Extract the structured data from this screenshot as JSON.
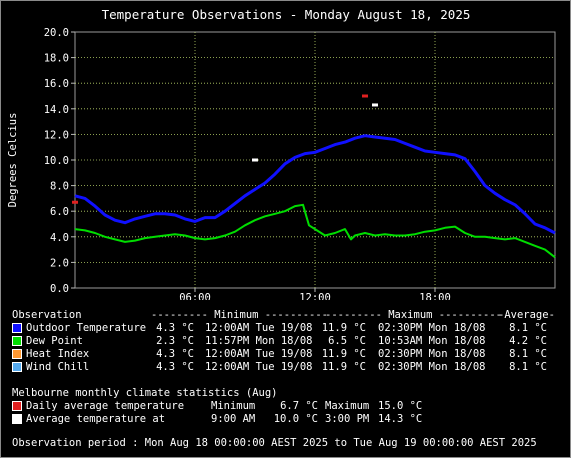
{
  "chart_data": {
    "type": "line",
    "title": "Temperature Observations - Monday August 18, 2025",
    "ylabel": "Degrees Celcius",
    "xlabel": "",
    "ylim": [
      0,
      20
    ],
    "yticks": [
      "0.0",
      "2.0",
      "4.0",
      "6.0",
      "8.0",
      "10.0",
      "12.0",
      "14.0",
      "16.0",
      "18.0",
      "20.0"
    ],
    "xlim": [
      0,
      24
    ],
    "xticks": [
      {
        "hour": 6,
        "label": "06:00"
      },
      {
        "hour": 12,
        "label": "12:00"
      },
      {
        "hour": 18,
        "label": "18:00"
      }
    ],
    "grid": true,
    "series": [
      {
        "name": "Outdoor Temperature",
        "color": "#1010ff",
        "points": [
          [
            0,
            7.2
          ],
          [
            0.5,
            7.0
          ],
          [
            1,
            6.4
          ],
          [
            1.5,
            5.7
          ],
          [
            2,
            5.3
          ],
          [
            2.5,
            5.1
          ],
          [
            3,
            5.4
          ],
          [
            3.5,
            5.6
          ],
          [
            4,
            5.8
          ],
          [
            4.5,
            5.8
          ],
          [
            5,
            5.7
          ],
          [
            5.5,
            5.4
          ],
          [
            6,
            5.2
          ],
          [
            6.5,
            5.5
          ],
          [
            7,
            5.5
          ],
          [
            7.5,
            6.0
          ],
          [
            8,
            6.6
          ],
          [
            8.5,
            7.2
          ],
          [
            9,
            7.7
          ],
          [
            9.5,
            8.2
          ],
          [
            10,
            8.9
          ],
          [
            10.5,
            9.7
          ],
          [
            11,
            10.2
          ],
          [
            11.5,
            10.5
          ],
          [
            12,
            10.6
          ],
          [
            12.5,
            10.9
          ],
          [
            13,
            11.2
          ],
          [
            13.5,
            11.4
          ],
          [
            14,
            11.7
          ],
          [
            14.5,
            11.9
          ],
          [
            15,
            11.8
          ],
          [
            15.5,
            11.7
          ],
          [
            16,
            11.6
          ],
          [
            16.5,
            11.3
          ],
          [
            17,
            11.0
          ],
          [
            17.5,
            10.7
          ],
          [
            18,
            10.6
          ],
          [
            18.5,
            10.5
          ],
          [
            19,
            10.4
          ],
          [
            19.5,
            10.1
          ],
          [
            20,
            9.1
          ],
          [
            20.5,
            8.0
          ],
          [
            21,
            7.4
          ],
          [
            21.5,
            6.9
          ],
          [
            22,
            6.5
          ],
          [
            22.5,
            5.8
          ],
          [
            23,
            5.0
          ],
          [
            23.5,
            4.7
          ],
          [
            24,
            4.3
          ]
        ]
      },
      {
        "name": "Dew Point",
        "color": "#00dd00",
        "points": [
          [
            0,
            4.6
          ],
          [
            0.5,
            4.5
          ],
          [
            1,
            4.3
          ],
          [
            1.5,
            4.0
          ],
          [
            2,
            3.8
          ],
          [
            2.5,
            3.6
          ],
          [
            3,
            3.7
          ],
          [
            3.5,
            3.9
          ],
          [
            4,
            4.0
          ],
          [
            4.5,
            4.1
          ],
          [
            5,
            4.2
          ],
          [
            5.5,
            4.1
          ],
          [
            6,
            3.9
          ],
          [
            6.5,
            3.8
          ],
          [
            7,
            3.9
          ],
          [
            7.5,
            4.1
          ],
          [
            8,
            4.4
          ],
          [
            8.5,
            4.9
          ],
          [
            9,
            5.3
          ],
          [
            9.5,
            5.6
          ],
          [
            10,
            5.8
          ],
          [
            10.5,
            6.0
          ],
          [
            11,
            6.4
          ],
          [
            11.4,
            6.5
          ],
          [
            11.7,
            4.9
          ],
          [
            12,
            4.6
          ],
          [
            12.5,
            4.1
          ],
          [
            13,
            4.3
          ],
          [
            13.5,
            4.6
          ],
          [
            13.8,
            3.8
          ],
          [
            14,
            4.1
          ],
          [
            14.5,
            4.3
          ],
          [
            15,
            4.1
          ],
          [
            15.5,
            4.2
          ],
          [
            16,
            4.1
          ],
          [
            16.5,
            4.1
          ],
          [
            17,
            4.2
          ],
          [
            17.5,
            4.4
          ],
          [
            18,
            4.5
          ],
          [
            18.5,
            4.7
          ],
          [
            19,
            4.8
          ],
          [
            19.5,
            4.3
          ],
          [
            20,
            4.0
          ],
          [
            20.5,
            4.0
          ],
          [
            21,
            3.9
          ],
          [
            21.5,
            3.8
          ],
          [
            22,
            3.9
          ],
          [
            22.5,
            3.6
          ],
          [
            23,
            3.3
          ],
          [
            23.5,
            3.0
          ],
          [
            24,
            2.4
          ]
        ]
      }
    ],
    "markers": [
      {
        "name": "Daily average temperature",
        "hour": 0,
        "value": 6.7,
        "color": "#e02020"
      },
      {
        "name": "Daily average temperature",
        "hour": 14.5,
        "value": 15.0,
        "color": "#e02020"
      },
      {
        "name": "Average temperature at",
        "hour": 9,
        "value": 10.0,
        "color": "#ffffff"
      },
      {
        "name": "Average temperature at",
        "hour": 15,
        "value": 14.3,
        "color": "#ffffff"
      }
    ]
  },
  "stats": {
    "header": {
      "observation": "Observation",
      "minimum": "--------- Minimum ----------",
      "maximum": "--------- Maximum ----------",
      "average": "-Average-"
    },
    "rows": [
      {
        "label": "Outdoor Temperature",
        "color": "#1010ff",
        "min": "4.3 °C",
        "min_time": "12:00AM Tue 19/08",
        "max": "11.9 °C",
        "max_time": "02:30PM Mon 18/08",
        "avg": "8.1 °C"
      },
      {
        "label": "Dew Point",
        "color": "#00dd00",
        "min": "2.3 °C",
        "min_time": "11:57PM Mon 18/08",
        "max": "6.5 °C",
        "max_time": "10:53AM Mon 18/08",
        "avg": "4.2 °C"
      },
      {
        "label": "Heat Index",
        "color": "#ff9933",
        "min": "4.3 °C",
        "min_time": "12:00AM Tue 19/08",
        "max": "11.9 °C",
        "max_time": "02:30PM Mon 18/08",
        "avg": "8.1 °C"
      },
      {
        "label": "Wind Chill",
        "color": "#55aaee",
        "min": "4.3 °C",
        "min_time": "12:00AM Tue 19/08",
        "max": "11.9 °C",
        "max_time": "02:30PM Mon 18/08",
        "avg": "8.1 °C"
      }
    ]
  },
  "climate": {
    "title": "Melbourne monthly climate statistics (Aug)",
    "rows": [
      {
        "label": "Daily average temperature",
        "color": "#e02020",
        "min_label": "Minimum",
        "min": "6.7 °C",
        "max_label": "Maximum",
        "max": "15.0 °C"
      },
      {
        "label": "Average temperature at",
        "color": "#ffffff",
        "min_label": "9:00 AM",
        "min": "10.0 °C",
        "max_label": "3:00 PM",
        "max": "14.3 °C"
      }
    ]
  },
  "period": "Observation period : Mon Aug 18 00:00:00 AEST 2025 to Tue Aug 19 00:00:00 AEST 2025"
}
